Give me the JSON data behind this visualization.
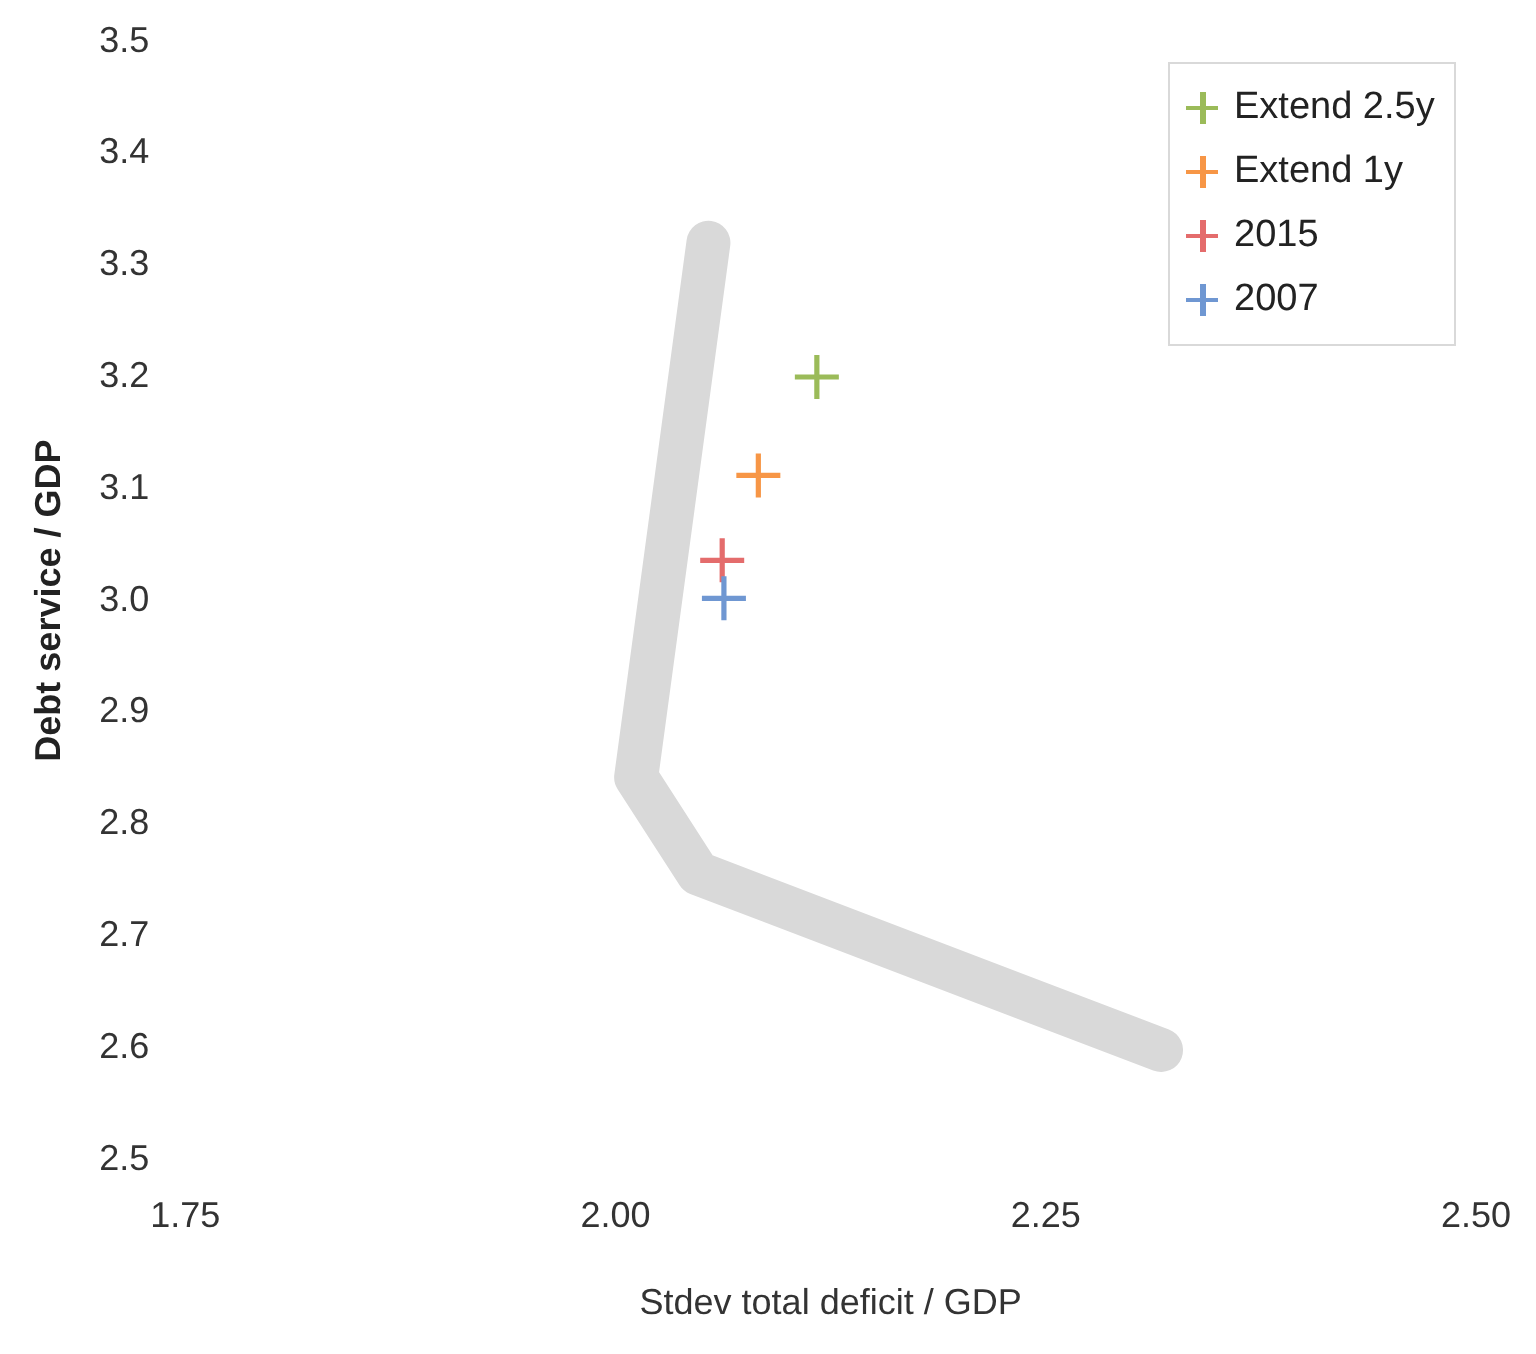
{
  "chart_data": {
    "type": "scatter",
    "xlabel": "Stdev total deficit / GDP",
    "ylabel": "Debt service / GDP",
    "xlim": [
      1.75,
      2.5
    ],
    "xticks": [
      1.75,
      {
        "value": 2,
        "label": "2.00"
      },
      2.25,
      {
        "value": 2.5,
        "label": "2.50"
      }
    ],
    "ylim": [
      2.5,
      3.5
    ],
    "yticks": [
      2.5,
      2.6,
      2.7,
      2.8,
      2.9,
      {
        "value": 3,
        "label": "3.0"
      },
      3.1,
      3.2,
      3.3,
      3.4,
      3.5
    ],
    "grid": false,
    "legend": "top right",
    "marker": "cross",
    "series": [
      {
        "type": "line",
        "color": "#d9d9d9",
        "marker": "none",
        "x": [
          2.054,
          2.012,
          2.048,
          2.317
        ],
        "values": [
          3.32,
          2.842,
          2.756,
          2.598
        ]
      },
      {
        "name": "Extend 2.5y",
        "color": "#9bbb59",
        "x": [
          2.117
        ],
        "values": [
          3.2
        ]
      },
      {
        "name": "Extend 1y",
        "color": "#f79646",
        "x": [
          2.083
        ],
        "values": [
          3.112
        ]
      },
      {
        "name": "2015",
        "color": "#e46c6c",
        "x": [
          2.062
        ],
        "values": [
          3.036
        ]
      },
      {
        "name": "2007",
        "color": "#6f97d2",
        "x": [
          2.063
        ],
        "values": [
          3.002
        ]
      }
    ]
  }
}
